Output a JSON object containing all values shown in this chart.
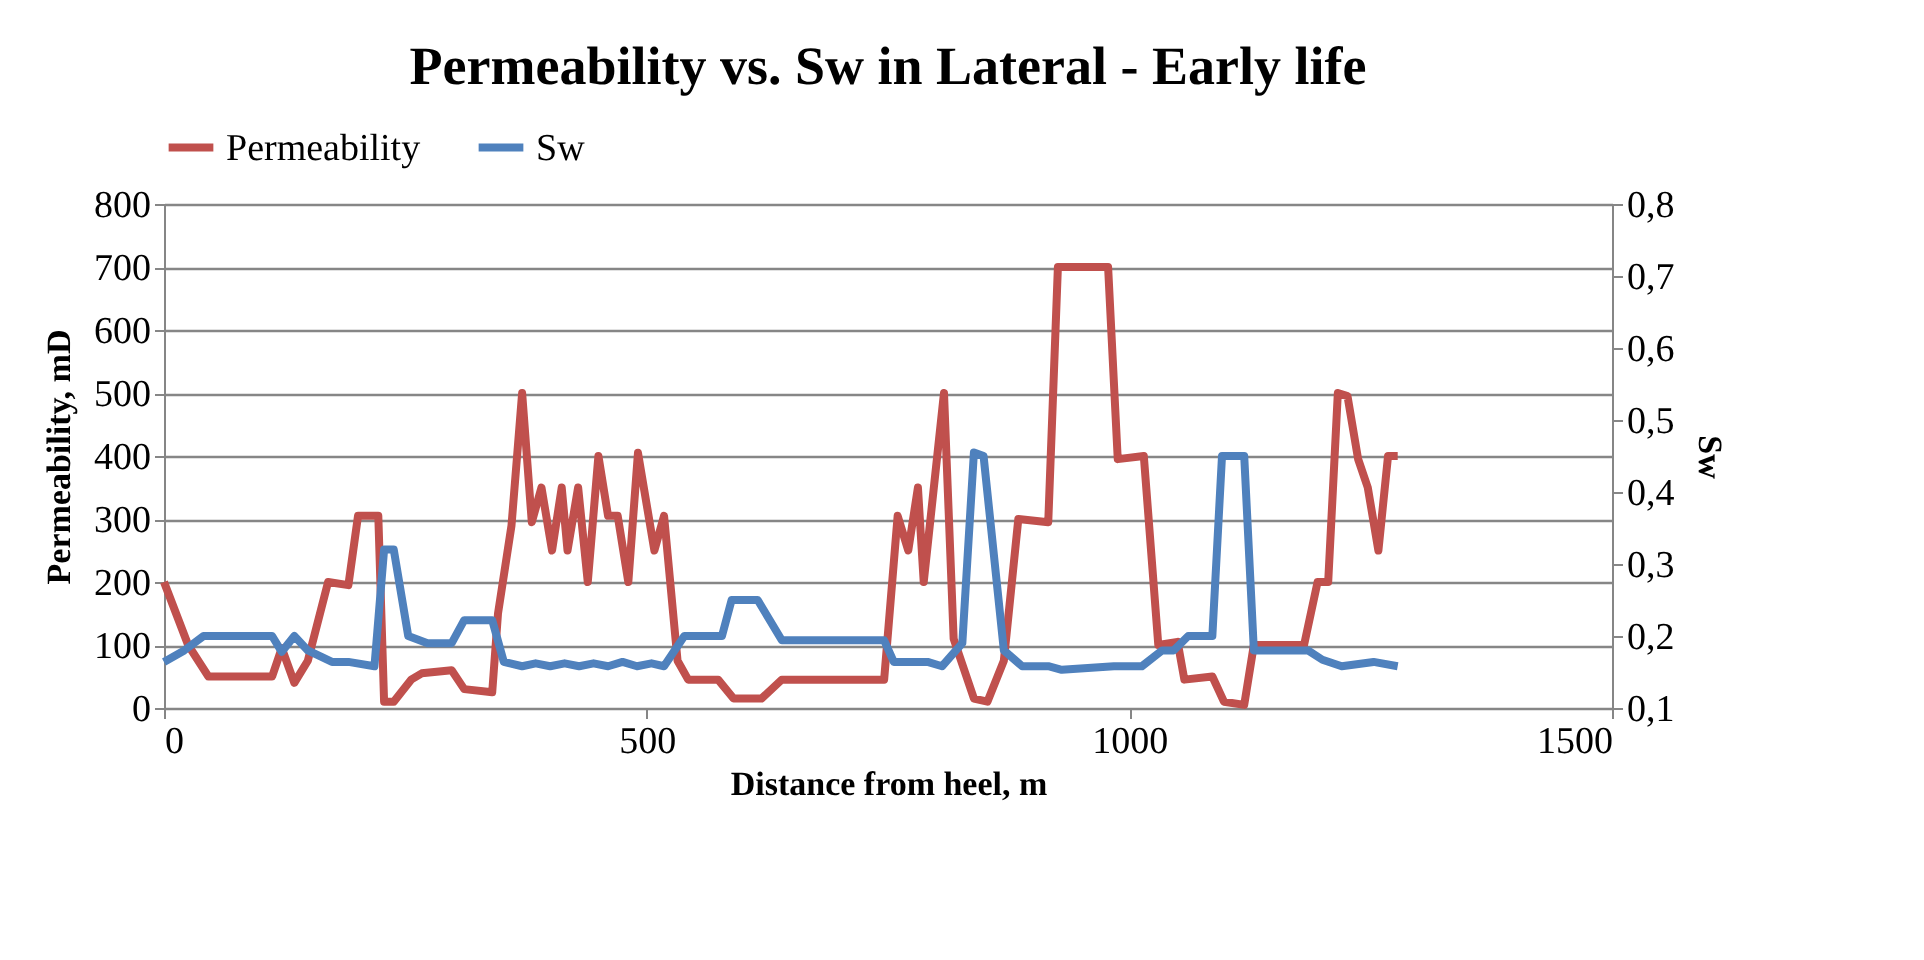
{
  "chart_data": {
    "type": "line",
    "title": "Permeability vs. Sw in Lateral - Early life",
    "xlabel": "Distance from heel, m",
    "ylabel": "Permeability, mD",
    "y2label": "Sw",
    "xlim": [
      0,
      1500
    ],
    "xticks": [
      0,
      500,
      1000,
      1500
    ],
    "ylim": [
      0,
      800
    ],
    "yticks": [
      0,
      100,
      200,
      300,
      400,
      500,
      600,
      700,
      800
    ],
    "y2lim": [
      0.1,
      0.8
    ],
    "y2ticks": [
      {
        "value": 0.1,
        "label": "0,1"
      },
      {
        "value": 0.2,
        "label": "0,2"
      },
      {
        "value": 0.3,
        "label": "0,3"
      },
      {
        "value": 0.4,
        "label": "0,4"
      },
      {
        "value": 0.5,
        "label": "0,5"
      },
      {
        "value": 0.6,
        "label": "0,6"
      },
      {
        "value": 0.7,
        "label": "0,7"
      },
      {
        "value": 0.8,
        "label": "0,8"
      }
    ],
    "grid": "y",
    "legend": "top",
    "line_style": "solid",
    "series": [
      {
        "name": "Permeability",
        "color": "#c0504d",
        "x": [
          0,
          25,
          46,
          112,
          122,
          135,
          149,
          170,
          191,
          201,
          222,
          228,
          238,
          256,
          267,
          298,
          311,
          340,
          346,
          360,
          371,
          381,
          391,
          402,
          412,
          418,
          429,
          439,
          450,
          460,
          470,
          481,
          491,
          508,
          518,
          532,
          543,
          574,
          590,
          619,
          640,
          746,
          760,
          771,
          781,
          787,
          808,
          818,
          839,
          853,
          870,
          885,
          916,
          926,
          978,
          988,
          1015,
          1030,
          1050,
          1057,
          1086,
          1098,
          1119,
          1129,
          1181,
          1195,
          1206,
          1216,
          1226,
          1237,
          1247,
          1258,
          1268,
          1278
        ],
        "values": [
          200,
          100,
          50,
          50,
          95,
          40,
          75,
          200,
          195,
          305,
          305,
          10,
          10,
          45,
          55,
          60,
          30,
          25,
          150,
          290,
          500,
          295,
          350,
          250,
          350,
          250,
          350,
          200,
          400,
          305,
          305,
          200,
          405,
          250,
          305,
          75,
          45,
          45,
          15,
          15,
          45,
          45,
          305,
          250,
          350,
          200,
          500,
          110,
          15,
          10,
          75,
          300,
          295,
          700,
          700,
          395,
          400,
          100,
          105,
          45,
          50,
          10,
          5,
          100,
          100,
          200,
          200,
          500,
          495,
          395,
          350,
          250,
          400,
          400
        ]
      },
      {
        "name": "Sw",
        "color": "#4f81bd",
        "axis": "y2",
        "x": [
          0,
          21,
          41,
          112,
          122,
          135,
          149,
          174,
          191,
          218,
          228,
          238,
          253,
          273,
          298,
          311,
          340,
          352,
          371,
          385,
          400,
          415,
          430,
          445,
          460,
          475,
          490,
          505,
          518,
          539,
          578,
          588,
          615,
          640,
          746,
          756,
          791,
          806,
          827,
          839,
          849,
          870,
          889,
          916,
          930,
          984,
          1013,
          1034,
          1046,
          1061,
          1086,
          1096,
          1119,
          1129,
          1185,
          1200,
          1220,
          1253,
          1278
        ],
        "values": [
          0.164,
          0.18,
          0.2,
          0.2,
          0.178,
          0.2,
          0.18,
          0.164,
          0.164,
          0.158,
          0.32,
          0.32,
          0.2,
          0.19,
          0.19,
          0.222,
          0.222,
          0.164,
          0.158,
          0.162,
          0.158,
          0.162,
          0.158,
          0.162,
          0.158,
          0.164,
          0.158,
          0.162,
          0.158,
          0.2,
          0.2,
          0.25,
          0.25,
          0.194,
          0.194,
          0.164,
          0.164,
          0.158,
          0.19,
          0.455,
          0.45,
          0.18,
          0.158,
          0.158,
          0.153,
          0.158,
          0.158,
          0.18,
          0.18,
          0.2,
          0.2,
          0.45,
          0.45,
          0.18,
          0.18,
          0.167,
          0.158,
          0.164,
          0.158
        ]
      }
    ]
  }
}
